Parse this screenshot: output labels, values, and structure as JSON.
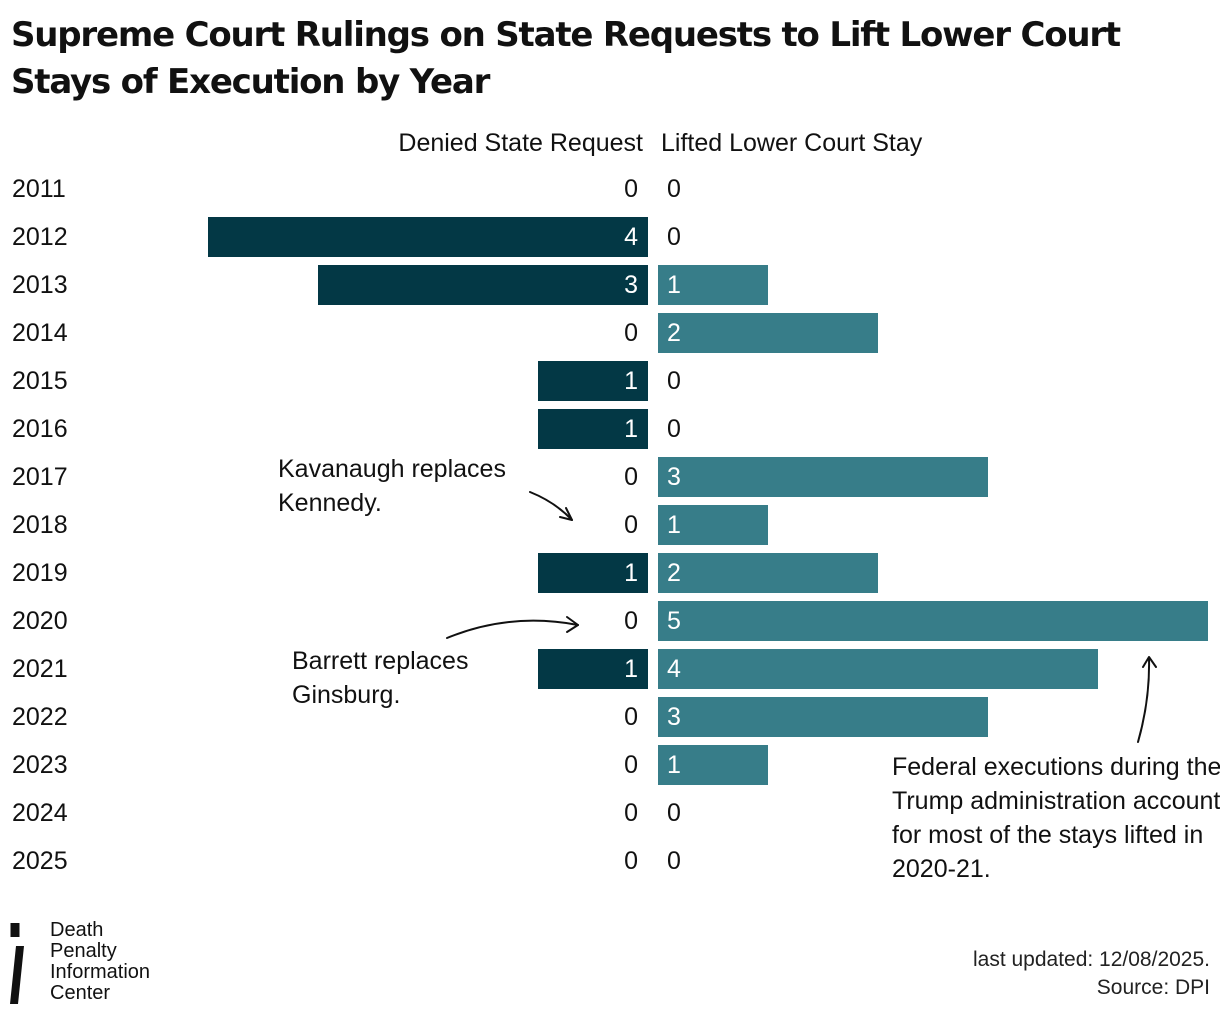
{
  "title": "Supreme Court Rulings on State Requests to Lift Lower Court Stays of Execution by Year",
  "chart_data": {
    "type": "bar",
    "orientation": "diverging-horizontal",
    "categories": [
      "2011",
      "2012",
      "2013",
      "2014",
      "2015",
      "2016",
      "2017",
      "2018",
      "2019",
      "2020",
      "2021",
      "2022",
      "2023",
      "2024",
      "2025"
    ],
    "series": [
      {
        "name": "Denied State Request",
        "values": [
          0,
          4,
          3,
          0,
          1,
          1,
          0,
          0,
          1,
          0,
          1,
          0,
          0,
          0,
          0
        ],
        "color": "#033845"
      },
      {
        "name": "Lifted Lower Court Stay",
        "values": [
          0,
          0,
          1,
          2,
          0,
          0,
          3,
          1,
          2,
          5,
          4,
          3,
          1,
          0,
          0
        ],
        "color": "#377d89"
      }
    ],
    "annotations": [
      {
        "lines": [
          "Kavanaugh replaces",
          "Kennedy."
        ],
        "points_to": "2018"
      },
      {
        "lines": [
          "Barrett replaces",
          "Ginsburg."
        ],
        "points_to": "2020"
      },
      {
        "lines": [
          "Federal executions during the",
          "Trump administration accounted",
          "for most of the stays lifted in",
          "2020-21."
        ],
        "points_to": "2020-2021"
      }
    ]
  },
  "colors": {
    "denied": "#033845",
    "lifted": "#377d89",
    "text": "#111111",
    "bar_label": "#ffffff"
  },
  "logo": {
    "lines": [
      "Death",
      "Penalty",
      "Information",
      "Center"
    ]
  },
  "footer": {
    "updated": "last updated: 12/08/2025.",
    "source": "Source: DPI"
  }
}
